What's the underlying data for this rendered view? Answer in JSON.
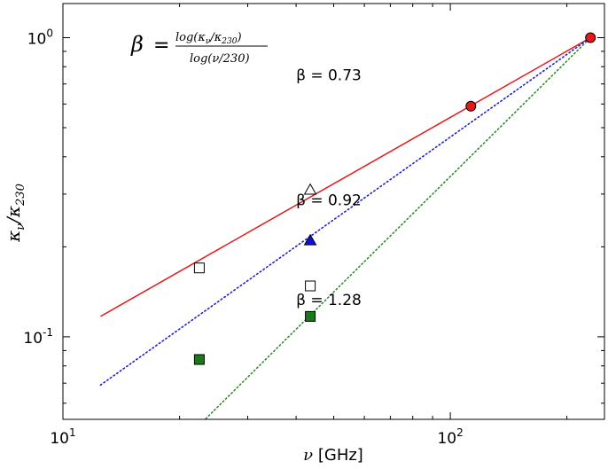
{
  "chart_data": {
    "type": "scatter",
    "x_scale": "log",
    "y_scale": "log",
    "xlim": [
      10,
      250
    ],
    "ylim": [
      0.053,
      1.3
    ],
    "x_ticks": [
      {
        "value": 10,
        "base": "10",
        "exp": "1"
      },
      {
        "value": 100,
        "base": "10",
        "exp": "2"
      }
    ],
    "y_ticks": [
      {
        "value": 0.1,
        "base": "10",
        "exp": "-1"
      },
      {
        "value": 1,
        "base": "10",
        "exp": "0"
      }
    ],
    "xlabel": {
      "symbol": "ν",
      "text": "[GHz]"
    },
    "ylabel": {
      "symbol1": "κ",
      "sub1": "ν",
      "slash": "/",
      "symbol2": "κ",
      "sub2": "230"
    },
    "formula": {
      "lhs": "β",
      "eq": "=",
      "numerator": "log(κ",
      "num_sub": "ν",
      "num_mid": "/κ",
      "num_sub2": "230",
      "num_end": ")",
      "denominator": "log(ν/230)"
    },
    "lines": [
      {
        "style": "solid",
        "color": "#e31a1c",
        "x": [
          12.5,
          230
        ],
        "y": [
          0.117,
          1.0
        ],
        "label": "β = 0.73",
        "label_at": [
          40,
          0.72
        ]
      },
      {
        "style": "dotted",
        "color": "#1f1fcc",
        "x": [
          12.5,
          230
        ],
        "y": [
          0.069,
          1.0
        ],
        "label": "β = 0.92",
        "label_at": [
          40,
          0.275
        ]
      },
      {
        "style": "dotted",
        "color": "#2e8b2e",
        "x": [
          22.6,
          230
        ],
        "y": [
          0.051,
          1.0
        ],
        "label": "β = 1.28",
        "label_at": [
          40,
          0.128
        ]
      }
    ],
    "points": [
      {
        "x": 230,
        "y": 1.0,
        "marker": "circle",
        "fill": "#e31a1c"
      },
      {
        "x": 113,
        "y": 0.59,
        "marker": "circle",
        "fill": "#e31a1c"
      },
      {
        "x": 43.5,
        "y": 0.31,
        "marker": "triangle",
        "fill": "#ffffff"
      },
      {
        "x": 43.5,
        "y": 0.21,
        "marker": "triangle",
        "fill": "#1010dd"
      },
      {
        "x": 22.5,
        "y": 0.17,
        "marker": "square",
        "fill": "#ffffff"
      },
      {
        "x": 43.5,
        "y": 0.148,
        "marker": "square",
        "fill": "#ffffff"
      },
      {
        "x": 43.5,
        "y": 0.117,
        "marker": "square",
        "fill": "#1a7a1a"
      },
      {
        "x": 22.5,
        "y": 0.084,
        "marker": "square",
        "fill": "#1a7a1a"
      }
    ]
  }
}
